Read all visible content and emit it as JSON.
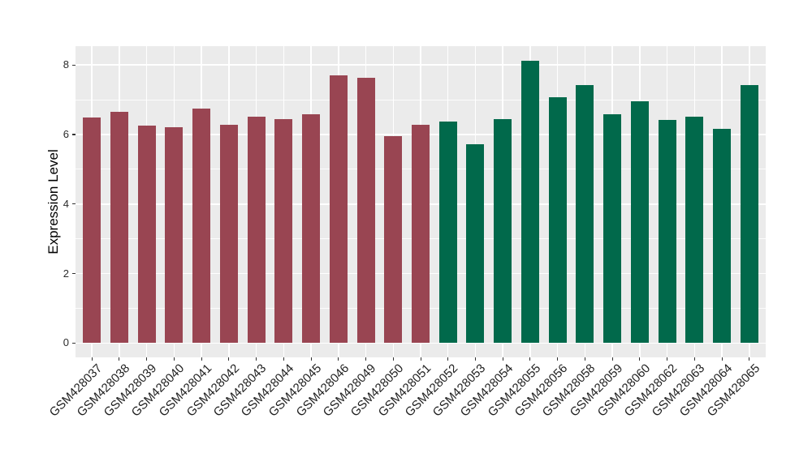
{
  "figure": {
    "background": "#FFFFFF",
    "title": "",
    "legend": "none"
  },
  "chart_data": {
    "type": "bar",
    "title": "",
    "xlabel": "",
    "ylabel": "Expression Level",
    "categories": [
      "GSM428037",
      "GSM428038",
      "GSM428039",
      "GSM428040",
      "GSM428041",
      "GSM428042",
      "GSM428043",
      "GSM428044",
      "GSM428045",
      "GSM428046",
      "GSM428049",
      "GSM428050",
      "GSM428051",
      "GSM428052",
      "GSM428053",
      "GSM428054",
      "GSM428055",
      "GSM428056",
      "GSM428058",
      "GSM428059",
      "GSM428060",
      "GSM428062",
      "GSM428063",
      "GSM428064",
      "GSM428065"
    ],
    "values": [
      6.49,
      6.66,
      6.26,
      6.22,
      6.74,
      6.29,
      6.51,
      6.44,
      6.58,
      7.7,
      7.62,
      5.96,
      6.28,
      6.37,
      5.73,
      6.44,
      8.12,
      7.07,
      7.42,
      6.58,
      6.96,
      6.43,
      6.52,
      6.16,
      7.43
    ],
    "bar_groups": [
      {
        "color": "#994552",
        "start_category": "GSM428037",
        "end_category": "GSM428051",
        "count": 13
      },
      {
        "color": "#01694B",
        "start_category": "GSM428052",
        "end_category": "GSM428065",
        "count": 12
      }
    ],
    "ylim": [
      -0.41,
      8.54
    ],
    "yticks": [
      0,
      2,
      4,
      6,
      8
    ],
    "ytick_labels": [
      "0",
      "2",
      "4",
      "6",
      "8"
    ],
    "yticks_minor": [
      1,
      3,
      5,
      7
    ],
    "x_tick_label_rotation_deg": 45,
    "grid": "horizontal major+minor, vertical major per category",
    "plot_background": "#EBEBEB",
    "gridline_color": "#FFFFFF",
    "tick_color": "#333333",
    "axis_text_color": "#2B2B2B"
  }
}
